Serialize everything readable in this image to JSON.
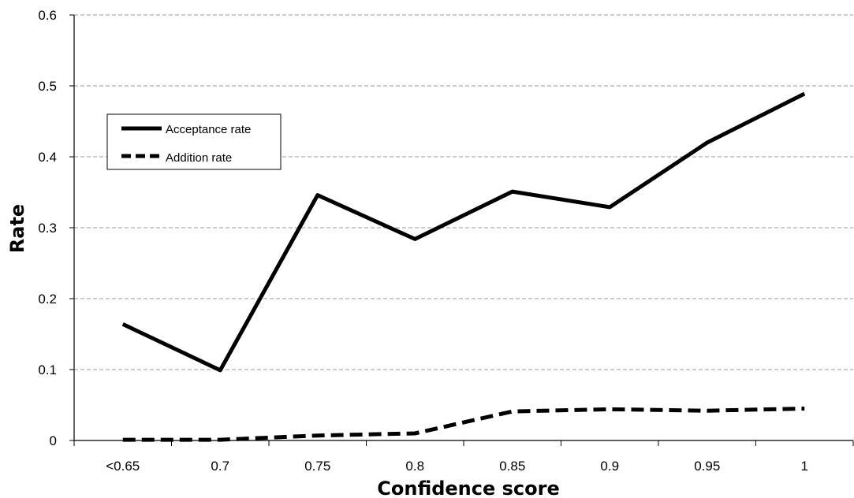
{
  "chart_data": {
    "type": "line",
    "categories": [
      "<0.65",
      "0.7",
      "0.75",
      "0.8",
      "0.85",
      "0.9",
      "0.95",
      "1"
    ],
    "series": [
      {
        "name": "Acceptance rate",
        "values": [
          0.164,
          0.099,
          0.346,
          0.284,
          0.351,
          0.329,
          0.42,
          0.489
        ],
        "style": "solid",
        "color": "#000000"
      },
      {
        "name": "Addition rate",
        "values": [
          0.001,
          0.001,
          0.007,
          0.01,
          0.041,
          0.044,
          0.042,
          0.045
        ],
        "style": "dashed",
        "color": "#000000"
      }
    ],
    "title": "",
    "xlabel": "Confidence score",
    "ylabel": "Rate",
    "ylim": [
      0,
      0.6
    ],
    "yticks": [
      "0",
      "0.1",
      "0.2",
      "0.3",
      "0.4",
      "0.5",
      "0.6"
    ],
    "grid": true,
    "legend_position": "upper-left"
  }
}
